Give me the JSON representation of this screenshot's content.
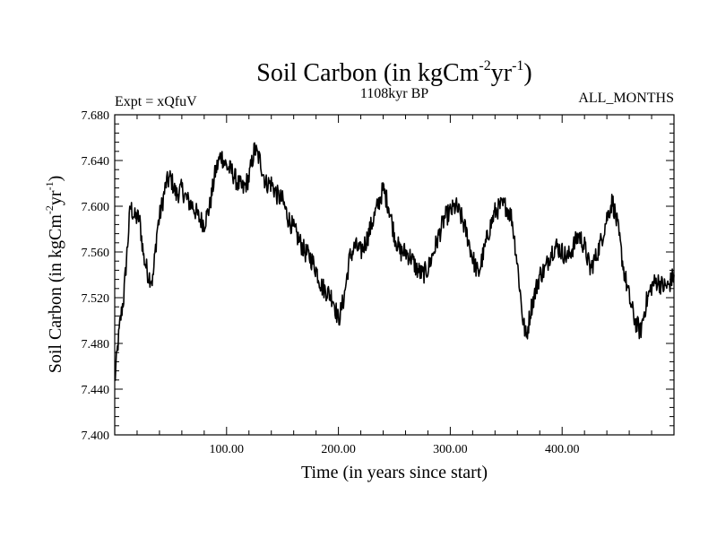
{
  "chart_data": {
    "type": "line",
    "title_main": "Soil Carbon (in kgCm",
    "title_sup1": "-2",
    "title_mid": "yr",
    "title_sup2": "-1",
    "title_end": ")",
    "subtitle_left": "Expt = xQfuV",
    "subtitle_center": "1108kyr BP",
    "subtitle_right": "ALL_MONTHS",
    "xlabel": "Time (in years since start)",
    "ylabel_main": "Soil Carbon (in kgCm",
    "ylabel_sup1": "-2",
    "ylabel_mid": "yr",
    "ylabel_sup2": "-1",
    "ylabel_end": ")",
    "xlim": [
      0,
      500
    ],
    "ylim": [
      7.4,
      7.68
    ],
    "x_ticks": [
      100,
      200,
      300,
      400
    ],
    "x_tick_labels": [
      "100.00",
      "200.00",
      "300.00",
      "400.00"
    ],
    "y_ticks": [
      7.4,
      7.44,
      7.48,
      7.52,
      7.56,
      7.6,
      7.64,
      7.68
    ],
    "y_tick_labels": [
      "7.400",
      "7.440",
      "7.480",
      "7.520",
      "7.560",
      "7.600",
      "7.640",
      "7.680"
    ],
    "line_color": "#000000",
    "grid": false,
    "series": [
      {
        "name": "Soil Carbon",
        "x": [
          0,
          2,
          5,
          8,
          11,
          14,
          18,
          22,
          26,
          30,
          34,
          38,
          42,
          46,
          50,
          55,
          60,
          65,
          70,
          75,
          80,
          85,
          90,
          95,
          100,
          105,
          110,
          115,
          120,
          125,
          130,
          135,
          140,
          145,
          150,
          155,
          160,
          165,
          170,
          175,
          180,
          185,
          190,
          195,
          200,
          205,
          210,
          215,
          220,
          225,
          230,
          235,
          240,
          245,
          250,
          255,
          260,
          265,
          270,
          275,
          280,
          285,
          290,
          295,
          300,
          305,
          310,
          315,
          320,
          325,
          330,
          335,
          340,
          345,
          350,
          355,
          360,
          365,
          368,
          372,
          376,
          380,
          385,
          390,
          395,
          400,
          405,
          410,
          415,
          420,
          425,
          430,
          435,
          440,
          445,
          450,
          455,
          460,
          465,
          470,
          475,
          480,
          485,
          490,
          495,
          500
        ],
        "y": [
          7.445,
          7.47,
          7.5,
          7.52,
          7.56,
          7.6,
          7.59,
          7.59,
          7.555,
          7.54,
          7.535,
          7.58,
          7.6,
          7.62,
          7.625,
          7.61,
          7.615,
          7.605,
          7.6,
          7.59,
          7.585,
          7.6,
          7.63,
          7.645,
          7.635,
          7.63,
          7.62,
          7.615,
          7.625,
          7.65,
          7.64,
          7.62,
          7.62,
          7.61,
          7.605,
          7.59,
          7.58,
          7.57,
          7.56,
          7.555,
          7.545,
          7.53,
          7.525,
          7.52,
          7.5,
          7.52,
          7.555,
          7.565,
          7.56,
          7.57,
          7.585,
          7.6,
          7.615,
          7.6,
          7.575,
          7.56,
          7.56,
          7.555,
          7.545,
          7.54,
          7.545,
          7.56,
          7.575,
          7.59,
          7.595,
          7.6,
          7.59,
          7.575,
          7.555,
          7.54,
          7.56,
          7.58,
          7.595,
          7.6,
          7.6,
          7.59,
          7.55,
          7.5,
          7.485,
          7.51,
          7.525,
          7.54,
          7.545,
          7.56,
          7.565,
          7.56,
          7.555,
          7.565,
          7.575,
          7.565,
          7.545,
          7.555,
          7.57,
          7.59,
          7.605,
          7.58,
          7.545,
          7.52,
          7.5,
          7.49,
          7.515,
          7.53,
          7.535,
          7.53,
          7.53,
          7.54
        ]
      }
    ]
  }
}
